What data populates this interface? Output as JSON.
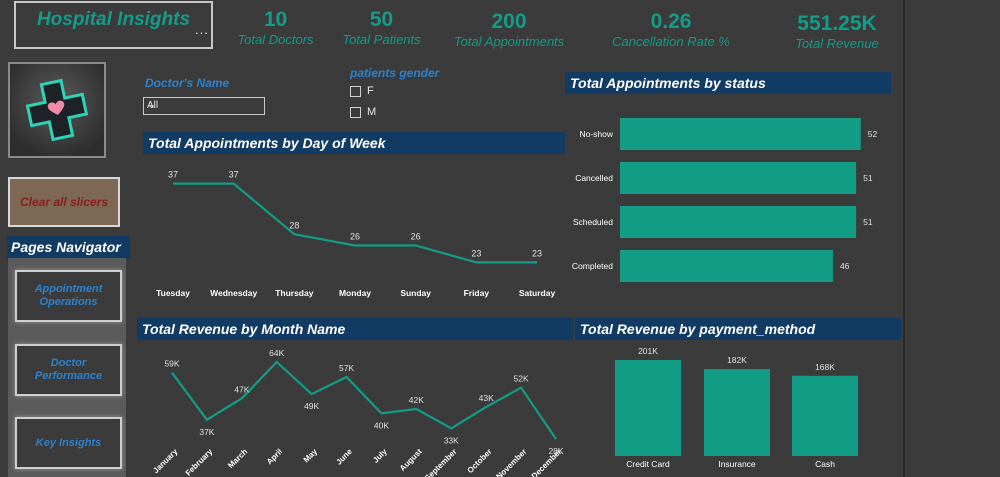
{
  "app": {
    "title": "Hospital Insights",
    "more": "..."
  },
  "kpis": [
    {
      "value": "10",
      "label": "Total Doctors"
    },
    {
      "value": "50",
      "label": "Total Patients"
    },
    {
      "value": "200",
      "label": "Total Appointments"
    },
    {
      "value": "0.26",
      "label": "Cancellation Rate %"
    },
    {
      "value": "551.25K",
      "label": "Total Revenue"
    }
  ],
  "slicers": {
    "doctor": {
      "title": "Doctor's Name",
      "selected": "All"
    },
    "gender": {
      "title": "patients gender",
      "options": [
        "F",
        "M"
      ]
    }
  },
  "sidebar": {
    "clear_label": "Clear all slicers",
    "pages_title": "Pages Navigator",
    "nav": [
      "Appointment Operations",
      "Doctor Performance",
      "Key Insights"
    ]
  },
  "colors": {
    "accent": "#139c86",
    "title_bg": "#123b63",
    "background": "#3b3b3b",
    "slicer_text": "#2b82cf"
  },
  "chart_data": [
    {
      "type": "line",
      "title": "Total Appointments by Day of Week",
      "categories": [
        "Tuesday",
        "Wednesday",
        "Thursday",
        "Monday",
        "Sunday",
        "Friday",
        "Saturday"
      ],
      "values": [
        37,
        37,
        28,
        26,
        26,
        23,
        23
      ],
      "labels": [
        "37",
        "37",
        "28",
        "26",
        "26",
        "23",
        "23"
      ]
    },
    {
      "type": "bar",
      "orientation": "horizontal",
      "title": "Total Appointments by status",
      "categories": [
        "No-show",
        "Cancelled",
        "Scheduled",
        "Completed"
      ],
      "values": [
        52,
        51,
        51,
        46
      ],
      "labels": [
        "52",
        "51",
        "51",
        "46"
      ]
    },
    {
      "type": "line",
      "title": "Total Revenue by Month Name",
      "categories": [
        "January",
        "February",
        "March",
        "April",
        "May",
        "June",
        "July",
        "August",
        "September",
        "October",
        "November",
        "December"
      ],
      "values": [
        59,
        37,
        47,
        64,
        49,
        57,
        40,
        42,
        33,
        43,
        52,
        28
      ],
      "labels": [
        "59K",
        "37K",
        "47K",
        "64K",
        "49K",
        "57K",
        "40K",
        "42K",
        "33K",
        "43K",
        "52K",
        "28K"
      ]
    },
    {
      "type": "bar",
      "title": "Total Revenue by payment_method",
      "categories": [
        "Credit Card",
        "Insurance",
        "Cash"
      ],
      "values": [
        201,
        182,
        168
      ],
      "labels": [
        "201K",
        "182K",
        "168K"
      ]
    }
  ]
}
